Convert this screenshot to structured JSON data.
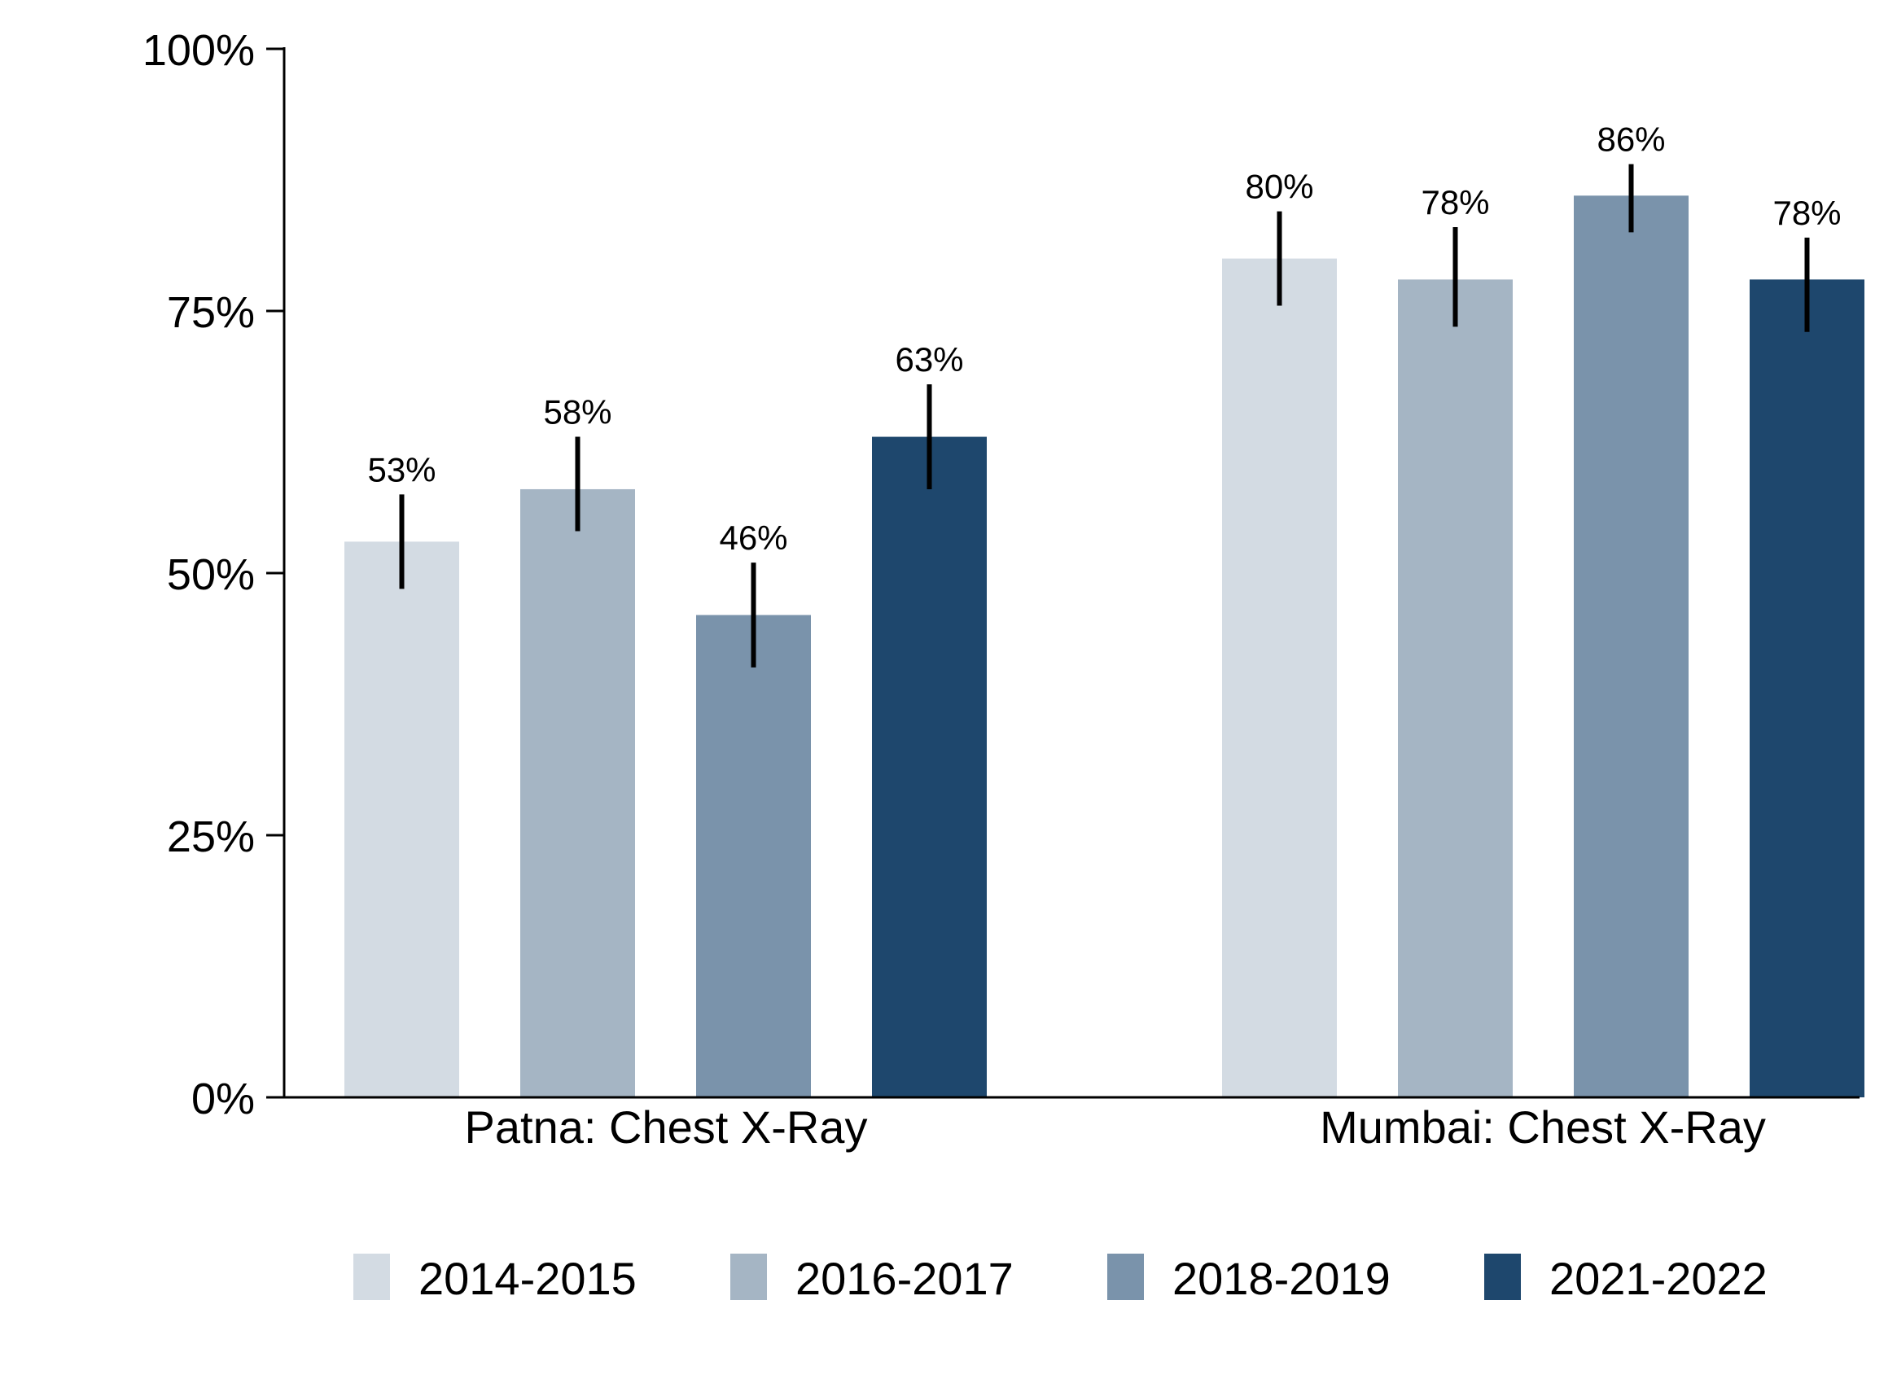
{
  "chart_data": {
    "type": "bar",
    "categories": [
      "Patna: Chest X-Ray",
      "Mumbai: Chest X-Ray"
    ],
    "series": [
      {
        "name": "2014-2015",
        "color": "#d3dbe3",
        "values": [
          53,
          80
        ],
        "labels": [
          "53%",
          "80%"
        ],
        "error_low": [
          48.5,
          75.5
        ],
        "error_high": [
          57.5,
          84.5
        ]
      },
      {
        "name": "2016-2017",
        "color": "#a5b5c4",
        "values": [
          58,
          78
        ],
        "labels": [
          "58%",
          "78%"
        ],
        "error_low": [
          54,
          73.5
        ],
        "error_high": [
          63,
          83
        ]
      },
      {
        "name": "2018-2019",
        "color": "#7a93ab",
        "values": [
          46,
          86
        ],
        "labels": [
          "46%",
          "86%"
        ],
        "error_low": [
          41,
          82.5
        ],
        "error_high": [
          51,
          89
        ]
      },
      {
        "name": "2021-2022",
        "color": "#1e476d",
        "values": [
          63,
          78
        ],
        "labels": [
          "63%",
          "78%"
        ],
        "error_low": [
          58,
          73
        ],
        "error_high": [
          68,
          82
        ]
      }
    ],
    "ylim": [
      0,
      100
    ],
    "yticks": [
      0,
      25,
      50,
      75,
      100
    ],
    "ytick_labels": [
      "0%",
      "25%",
      "50%",
      "75%",
      "100%"
    ],
    "error_bars": true,
    "grid": false,
    "legend_position": "bottom",
    "title": "",
    "xlabel": "",
    "ylabel": ""
  }
}
